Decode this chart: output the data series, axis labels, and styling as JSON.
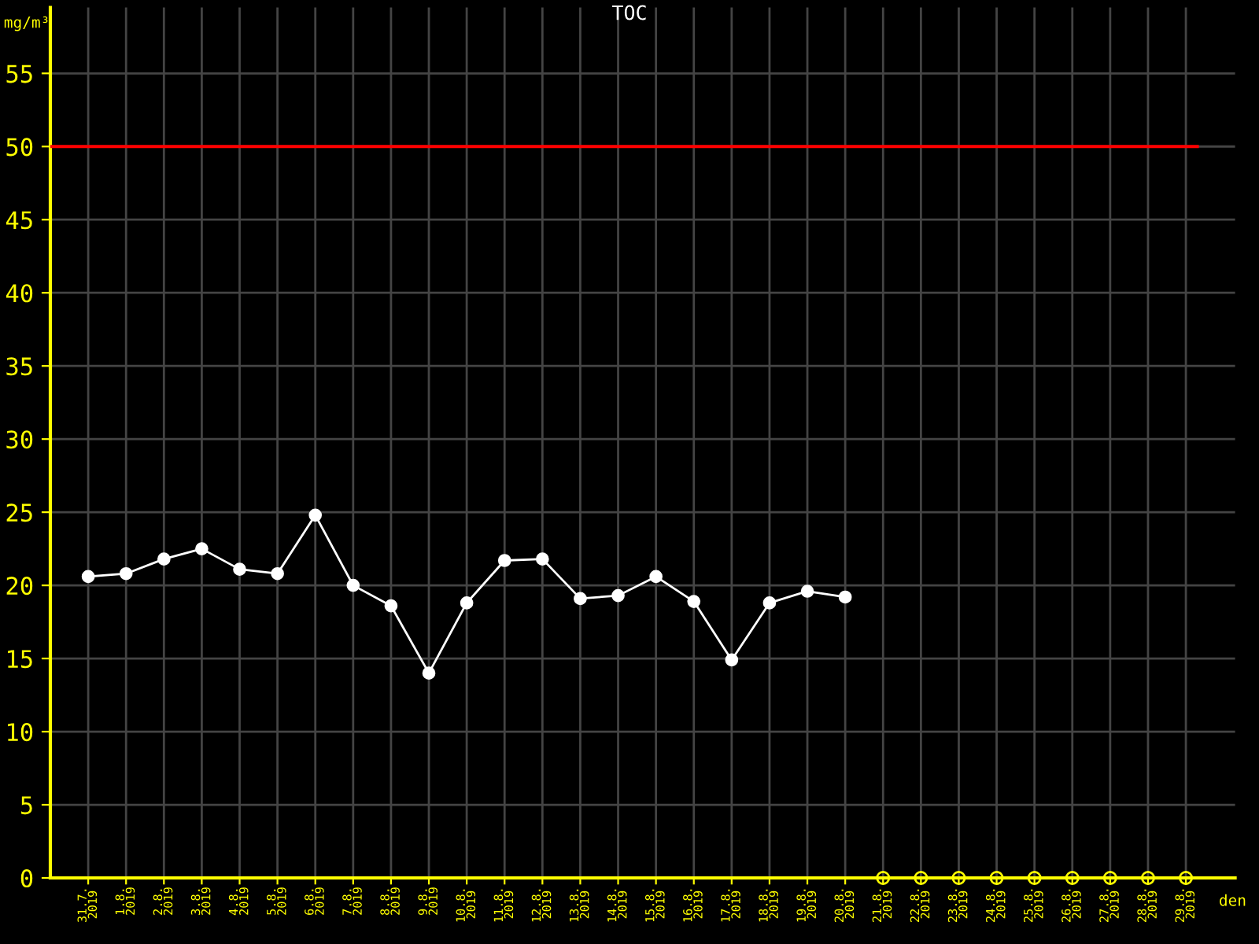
{
  "chart_data": {
    "type": "line",
    "title": "TOC",
    "ylabel": "mg/m³",
    "xlabel": "den",
    "categories": [
      "31.7.\n2019",
      "1.8.\n2019",
      "2.8.\n2019",
      "3.8.\n2019",
      "4.8.\n2019",
      "5.8.\n2019",
      "6.8.\n2019",
      "7.8.\n2019",
      "8.8.\n2019",
      "9.8.\n2019",
      "10.8.\n2019",
      "11.8.\n2019",
      "12.8.\n2019",
      "13.8.\n2019",
      "14.8.\n2019",
      "15.8.\n2019",
      "16.8.\n2019",
      "17.8.\n2019",
      "18.8.\n2019",
      "19.8.\n2019",
      "20.8.\n2019",
      "21.8.\n2019",
      "22.8.\n2019",
      "23.8.\n2019",
      "24.8.\n2019",
      "25.8.\n2019",
      "26.8.\n2019",
      "27.8.\n2019",
      "28.8.\n2019",
      "29.8.\n2019"
    ],
    "series": [
      {
        "color": "#ffffff",
        "marker": "circle",
        "values": [
          20.6,
          20.8,
          21.8,
          22.5,
          21.1,
          20.8,
          24.8,
          20.0,
          18.6,
          14.0,
          18.8,
          21.7,
          21.8,
          19.1,
          19.3,
          20.6,
          18.9,
          14.9,
          18.8,
          19.6,
          19.2,
          null,
          null,
          null,
          null,
          null,
          null,
          null,
          null,
          null
        ]
      },
      {
        "type": "scatter",
        "color": "#ffff00",
        "marker": "circle",
        "values": [
          null,
          null,
          null,
          null,
          null,
          null,
          null,
          null,
          null,
          null,
          null,
          null,
          null,
          null,
          null,
          null,
          null,
          null,
          null,
          null,
          null,
          0,
          0,
          0,
          0,
          0,
          0,
          0,
          0,
          0
        ]
      }
    ],
    "ylim": [
      0,
      59.5
    ],
    "yticks": [
      0,
      5,
      10,
      15,
      20,
      25,
      30,
      35,
      40,
      45,
      50,
      55
    ],
    "ref_lines": [
      {
        "axis": "y",
        "value": 50,
        "color": "#ff0000"
      }
    ],
    "grid": true
  }
}
